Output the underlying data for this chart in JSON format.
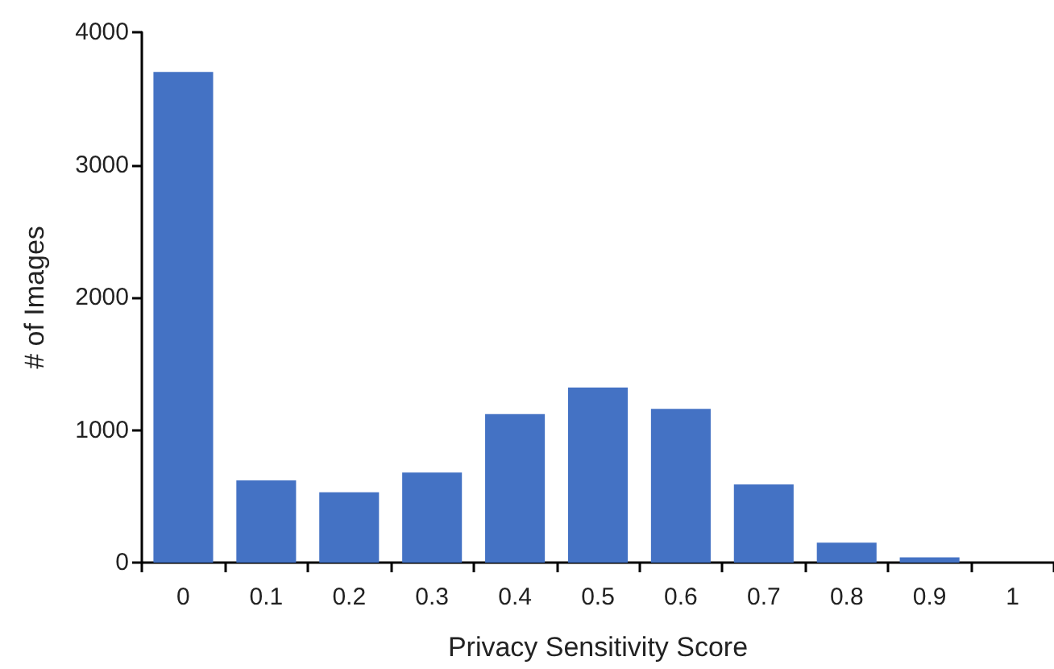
{
  "chart_data": {
    "type": "bar",
    "xlabel": "Privacy Sensitivity Score",
    "ylabel": "# of Images",
    "categories": [
      "0",
      "0.1",
      "0.2",
      "0.3",
      "0.4",
      "0.5",
      "0.6",
      "0.7",
      "0.8",
      "0.9",
      "1"
    ],
    "values": [
      3700,
      620,
      530,
      680,
      1120,
      1320,
      1160,
      590,
      150,
      40,
      0
    ],
    "color": "#4472c4",
    "ylim": [
      0,
      4000
    ],
    "yticks": [
      0,
      1000,
      2000,
      3000,
      4000
    ],
    "grid": false
  }
}
